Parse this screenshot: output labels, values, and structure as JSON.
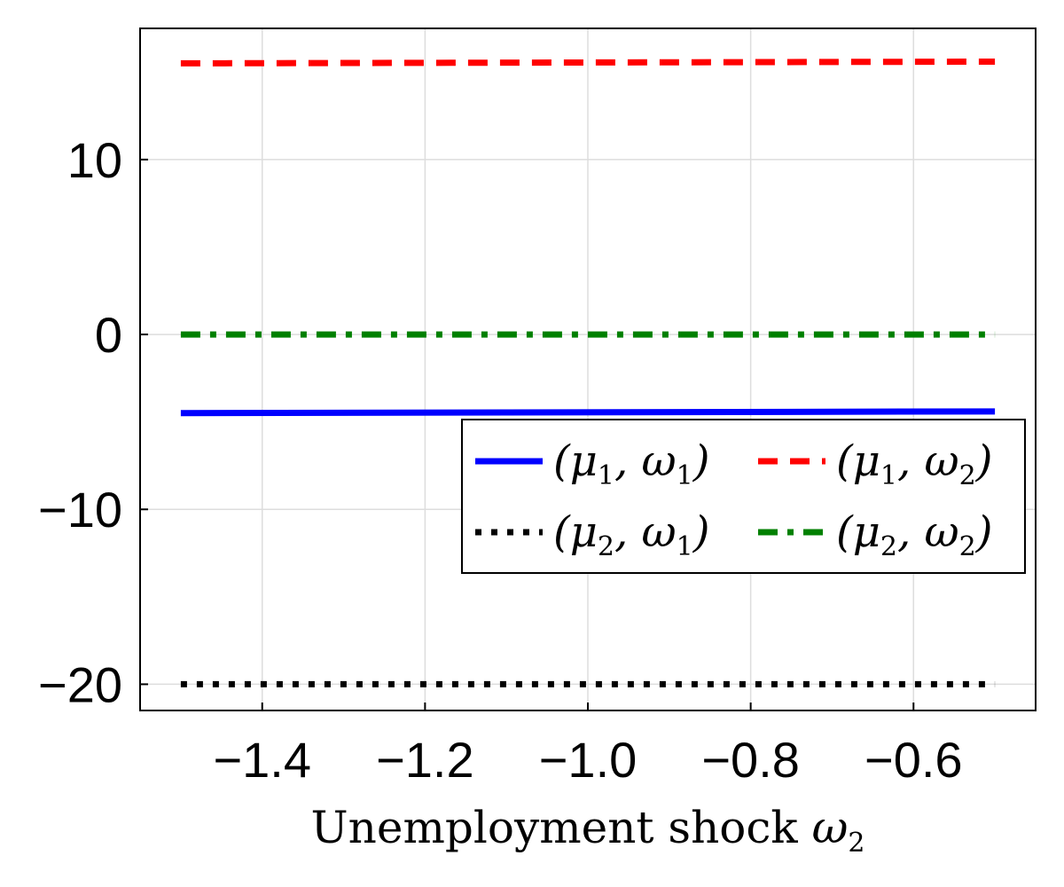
{
  "chart_data": {
    "type": "line",
    "xlabel": {
      "text": "Unemployment shock ",
      "symbol": "ω",
      "subscript": "2"
    },
    "ylabel": "",
    "xlim": [
      -1.55,
      -0.45
    ],
    "ylim": [
      -21.5,
      17.5
    ],
    "x_ticks": [
      -1.4,
      -1.2,
      -1.0,
      -0.8,
      -0.6
    ],
    "x_tick_labels": [
      "−1.4",
      "−1.2",
      "−1.0",
      "−0.8",
      "−0.6"
    ],
    "y_ticks": [
      -20,
      -10,
      0,
      10
    ],
    "y_tick_labels": [
      "−20",
      "−10",
      "0",
      "10"
    ],
    "grid": true,
    "legend_position": "right, below middle",
    "series": [
      {
        "key": "mu1_w1",
        "name": "(μ1, ω1)",
        "mu": "1",
        "w": "1",
        "color": "#0000ff",
        "style": "solid",
        "x": [
          -1.5,
          -0.5
        ],
        "y": [
          -4.5,
          -4.4
        ]
      },
      {
        "key": "mu1_w2",
        "name": "(μ1, ω2)",
        "mu": "1",
        "w": "2",
        "color": "#ff0000",
        "style": "dash",
        "x": [
          -1.5,
          -0.5
        ],
        "y": [
          15.5,
          15.6
        ]
      },
      {
        "key": "mu2_w1",
        "name": "(μ2, ω1)",
        "mu": "2",
        "w": "1",
        "color": "#000000",
        "style": "dot",
        "x": [
          -1.5,
          -0.5
        ],
        "y": [
          -20.0,
          -20.0
        ]
      },
      {
        "key": "mu2_w2",
        "name": "(μ2, ω2)",
        "mu": "2",
        "w": "2",
        "color": "#008000",
        "style": "dashdot",
        "x": [
          -1.5,
          -0.5
        ],
        "y": [
          0.0,
          0.0
        ]
      }
    ]
  }
}
